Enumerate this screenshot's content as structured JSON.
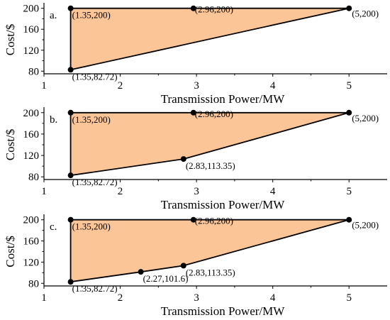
{
  "chart_data": [
    {
      "type": "area",
      "panel_label": "a.",
      "xlabel": "Transmission Power/MW",
      "ylabel": "Cost/$",
      "xlim": [
        1,
        5.5
      ],
      "ylim": [
        75,
        205
      ],
      "x_ticks": [
        1,
        2,
        3,
        4,
        5
      ],
      "y_ticks": [
        80,
        120,
        160,
        200
      ],
      "fill_color": "#fbc597",
      "polygon": [
        {
          "x": 1.35,
          "y": 200
        },
        {
          "x": 5,
          "y": 200
        },
        {
          "x": 1.35,
          "y": 82.72
        }
      ],
      "points": [
        {
          "x": 1.35,
          "y": 200,
          "label": "(1.35,200)"
        },
        {
          "x": 2.96,
          "y": 200,
          "label": "(2.96,200)"
        },
        {
          "x": 5,
          "y": 200,
          "label": "(5,200)"
        },
        {
          "x": 1.35,
          "y": 82.72,
          "label": "(1.35,82.72)"
        }
      ]
    },
    {
      "type": "area",
      "panel_label": "b.",
      "xlabel": "Transmission Power/MW",
      "ylabel": "Cost/$",
      "xlim": [
        1,
        5.5
      ],
      "ylim": [
        75,
        205
      ],
      "x_ticks": [
        1,
        2,
        3,
        4,
        5
      ],
      "y_ticks": [
        80,
        120,
        160,
        200
      ],
      "fill_color": "#fbc597",
      "polygon": [
        {
          "x": 1.35,
          "y": 200
        },
        {
          "x": 5,
          "y": 200
        },
        {
          "x": 2.83,
          "y": 113.35
        },
        {
          "x": 1.35,
          "y": 82.72
        }
      ],
      "points": [
        {
          "x": 1.35,
          "y": 200,
          "label": "(1.35,200)"
        },
        {
          "x": 2.96,
          "y": 200,
          "label": "(2.96,200)"
        },
        {
          "x": 5,
          "y": 200,
          "label": "(5,200)"
        },
        {
          "x": 2.83,
          "y": 113.35,
          "label": "(2.83,113.35)"
        },
        {
          "x": 1.35,
          "y": 82.72,
          "label": "(1.35,82.72)"
        }
      ]
    },
    {
      "type": "area",
      "panel_label": "c.",
      "xlabel": "Transmission Power/MW",
      "ylabel": "Cost/$",
      "xlim": [
        1,
        5.5
      ],
      "ylim": [
        75,
        205
      ],
      "x_ticks": [
        1,
        2,
        3,
        4,
        5
      ],
      "y_ticks": [
        80,
        120,
        160,
        200
      ],
      "fill_color": "#fbc597",
      "polygon": [
        {
          "x": 1.35,
          "y": 200
        },
        {
          "x": 5,
          "y": 200
        },
        {
          "x": 2.83,
          "y": 113.35
        },
        {
          "x": 2.27,
          "y": 101.6
        },
        {
          "x": 1.35,
          "y": 82.72
        }
      ],
      "points": [
        {
          "x": 1.35,
          "y": 200,
          "label": "(1.35,200)"
        },
        {
          "x": 2.96,
          "y": 200,
          "label": "(2.96,200)"
        },
        {
          "x": 5,
          "y": 200,
          "label": "(5,200)"
        },
        {
          "x": 2.83,
          "y": 113.35,
          "label": "(2.83,113.35)"
        },
        {
          "x": 2.27,
          "y": 101.6,
          "label": "(2.27,101.6)"
        },
        {
          "x": 1.35,
          "y": 82.72,
          "label": "(1.35,82.72)"
        }
      ]
    }
  ]
}
